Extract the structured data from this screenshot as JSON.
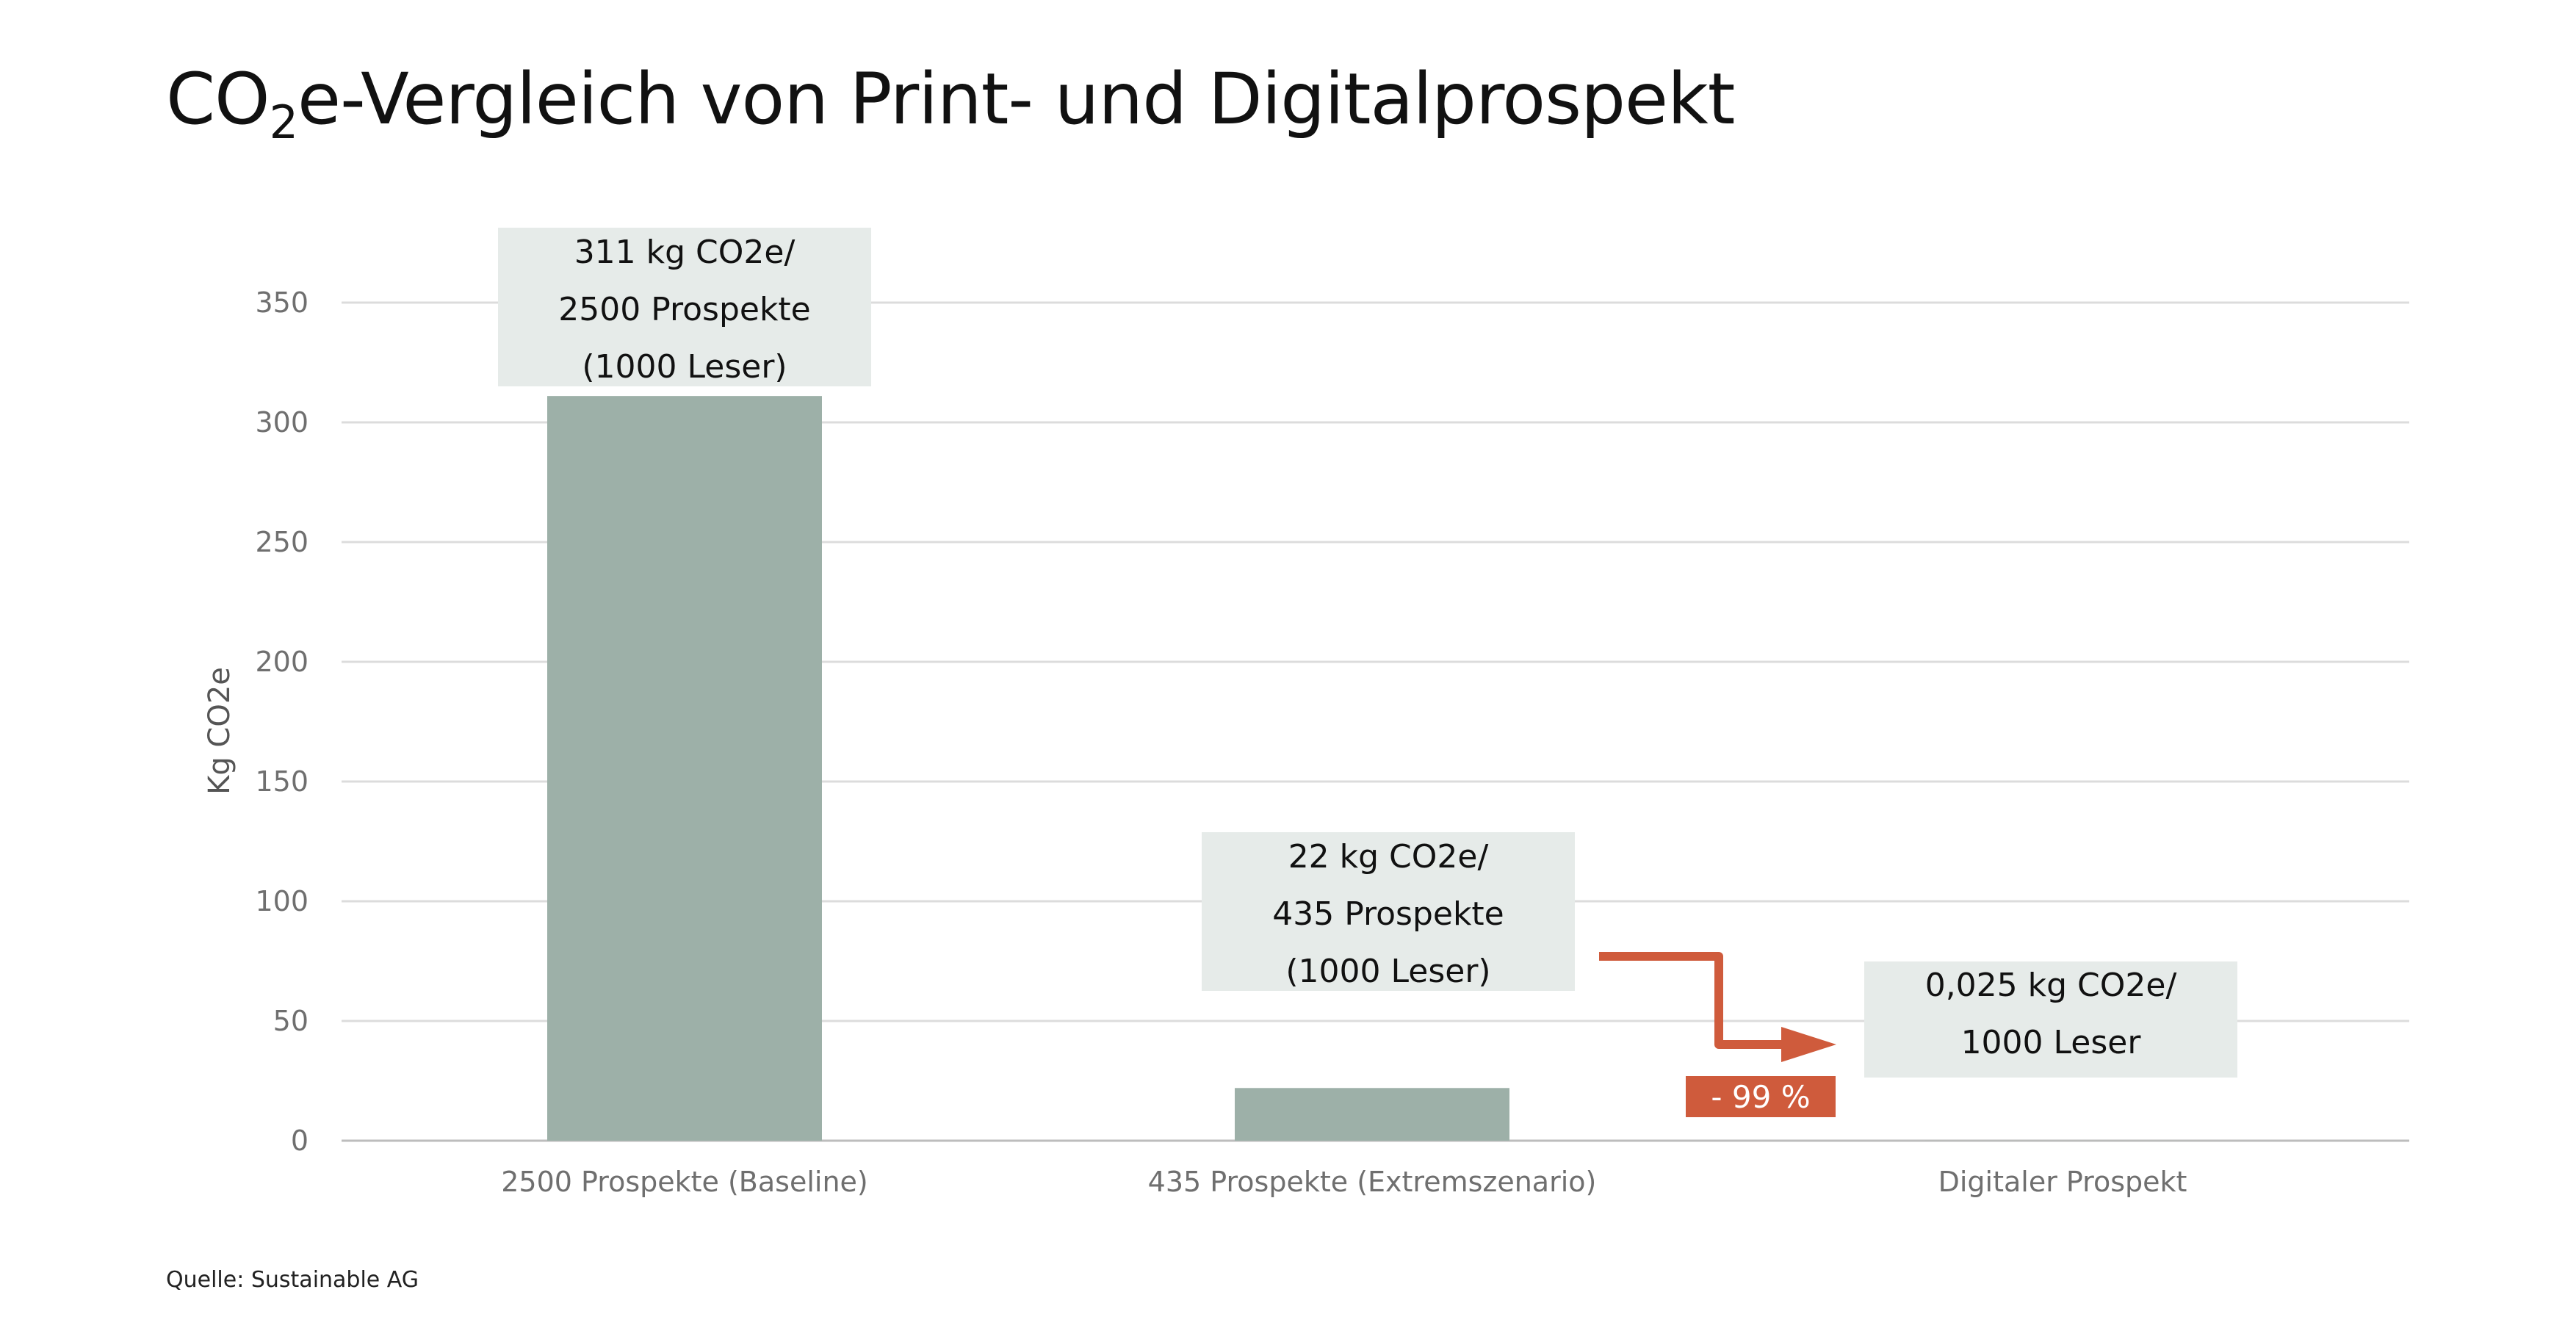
{
  "title": {
    "main": "CO",
    "sub": "2",
    "rest": "e-Vergleich von Print- und Digitalprospekt"
  },
  "source": "Quelle: Sustainable AG",
  "colors": {
    "bar": "#9db0a8",
    "grid": "#dcdcdc",
    "annotation_bg": "#e6ebe9",
    "accent": "#cf5b3c"
  },
  "chart_data": {
    "type": "bar",
    "title": "CO2e-Vergleich von Print- und Digitalprospekt",
    "ylabel": "Kg CO2e",
    "xlabel": "",
    "ylim": [
      0,
      350
    ],
    "yticks": [
      0,
      50,
      100,
      150,
      200,
      250,
      300,
      350
    ],
    "grid": true,
    "categories": [
      "2500 Prospekte (Baseline)",
      "435 Prospekte (Extremszenario)",
      "Digitaler Prospekt"
    ],
    "values": [
      311,
      22,
      0.025
    ],
    "annotations": [
      {
        "lines": [
          "311 kg CO2e/",
          "2500 Prospekte",
          "(1000 Leser)"
        ]
      },
      {
        "lines": [
          "22 kg CO2e/",
          "435 Prospekte",
          "(1000 Leser)"
        ]
      },
      {
        "lines": [
          "0,025 kg CO2e/",
          "1000 Leser"
        ]
      }
    ],
    "reduction_label": "- 99 %"
  }
}
